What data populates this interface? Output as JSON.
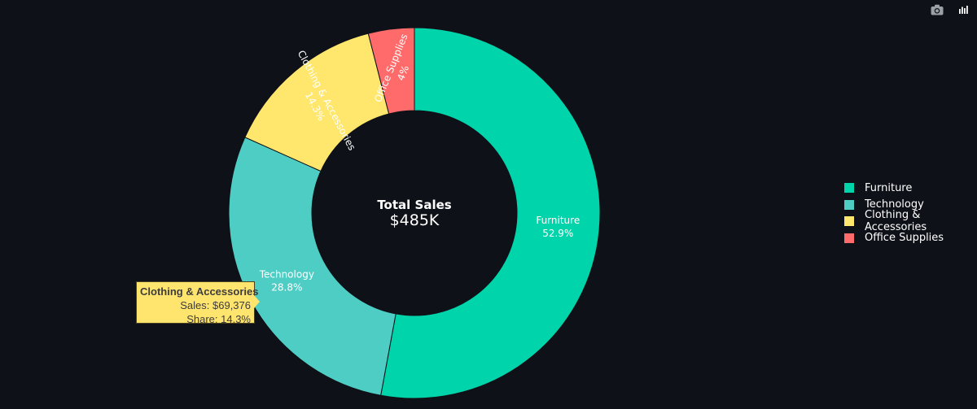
{
  "chart_data": {
    "type": "pie",
    "hole": true,
    "center_title": "Total Sales",
    "center_value": "$485K",
    "slices": [
      {
        "name": "Furniture",
        "label_pct": "52.9%",
        "share": 52.9,
        "color": "#00d4aa"
      },
      {
        "name": "Technology",
        "label_pct": "28.8%",
        "share": 28.8,
        "color": "#4ecdc4"
      },
      {
        "name": "Clothing & Accessories",
        "label_pct": "14.3%",
        "share": 14.3,
        "color": "#ffe66d"
      },
      {
        "name": "Office Supplies",
        "label_pct": "4%",
        "share": 4.0,
        "color": "#ff6b6b"
      }
    ],
    "legend": [
      "Furniture",
      "Technology",
      "Clothing & Accessories",
      "Office Supplies"
    ],
    "legend_position": "right",
    "tooltip": {
      "title": "Clothing & Accessories",
      "sales_line": "Sales: $69,376",
      "share_line": "Share: 14.3%"
    }
  },
  "colors": {
    "background": "#0e1117",
    "text": "#ffffff",
    "tooltip_bg": "#ffe46e"
  },
  "modebar": {
    "icons": [
      "camera-icon",
      "plotly-logo-icon"
    ]
  }
}
